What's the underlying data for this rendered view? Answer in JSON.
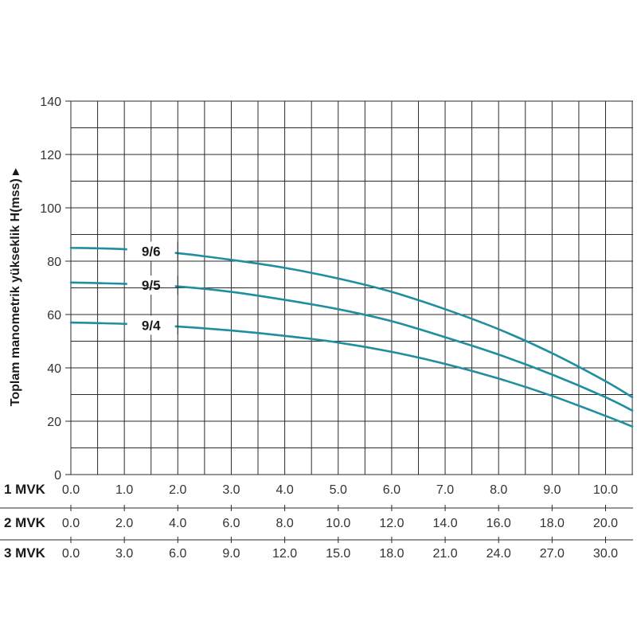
{
  "chart_data": {
    "type": "line",
    "ylabel": "Toplam manometrik yükseklik H(mss) ▸",
    "ylim": [
      0,
      140
    ],
    "y_ticks": [
      "0",
      "20",
      "40",
      "60",
      "80",
      "100",
      "120",
      "140"
    ],
    "grid": true,
    "curve_color": "#1f8fa0",
    "x_axes": [
      {
        "name": "1 MVK",
        "ticks": [
          "0.0",
          "1.0",
          "2.0",
          "3.0",
          "4.0",
          "5.0",
          "6.0",
          "7.0",
          "8.0",
          "9.0",
          "10.0"
        ]
      },
      {
        "name": "2 MVK",
        "ticks": [
          "0.0",
          "2.0",
          "4.0",
          "6.0",
          "8.0",
          "10.0",
          "12.0",
          "14.0",
          "16.0",
          "18.0",
          "20.0"
        ]
      },
      {
        "name": "3 MVK",
        "ticks": [
          "0.0",
          "3.0",
          "6.0",
          "9.0",
          "12.0",
          "15.0",
          "18.0",
          "21.0",
          "24.0",
          "27.0",
          "30.0"
        ]
      }
    ],
    "xlim_primary": [
      0,
      10.5
    ],
    "series": [
      {
        "name": "9/6",
        "x": [
          0,
          1,
          2,
          3,
          4,
          5,
          6,
          7,
          8,
          9,
          10,
          10.5
        ],
        "y": [
          85,
          84.5,
          83,
          80.5,
          77.5,
          73.5,
          68.5,
          62,
          54.5,
          45.5,
          35,
          29
        ]
      },
      {
        "name": "9/5",
        "x": [
          0,
          1,
          2,
          3,
          4,
          5,
          6,
          7,
          8,
          9,
          10,
          10.5
        ],
        "y": [
          72,
          71.5,
          70.5,
          68.5,
          65.5,
          62,
          57.5,
          51.5,
          45,
          37.5,
          29,
          24
        ]
      },
      {
        "name": "9/4",
        "x": [
          0,
          1,
          2,
          3,
          4,
          5,
          6,
          7,
          8,
          9,
          10,
          10.5
        ],
        "y": [
          57,
          56.5,
          55.5,
          54,
          52,
          49.5,
          46,
          41.5,
          36,
          29.5,
          22,
          18
        ]
      }
    ]
  }
}
